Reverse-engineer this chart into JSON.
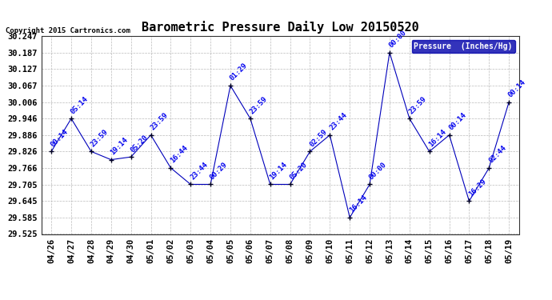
{
  "title": "Barometric Pressure Daily Low 20150520",
  "copyright": "Copyright 2015 Cartronics.com",
  "legend_label": "Pressure  (Inches/Hg)",
  "x_labels": [
    "04/26",
    "04/27",
    "04/28",
    "04/29",
    "04/30",
    "05/01",
    "05/02",
    "05/03",
    "05/04",
    "05/05",
    "05/06",
    "05/07",
    "05/08",
    "05/09",
    "05/10",
    "05/11",
    "05/12",
    "05/13",
    "05/14",
    "05/15",
    "05/16",
    "05/17",
    "05/18",
    "05/19"
  ],
  "y_values": [
    29.826,
    29.946,
    29.826,
    29.796,
    29.806,
    29.886,
    29.766,
    29.706,
    29.706,
    30.066,
    29.946,
    29.706,
    29.706,
    29.826,
    29.886,
    29.585,
    29.706,
    30.187,
    29.946,
    29.826,
    29.886,
    29.645,
    29.766,
    30.006
  ],
  "point_labels": [
    "00:14",
    "05:14",
    "23:59",
    "19:14",
    "05:20",
    "23:59",
    "16:44",
    "23:44",
    "00:29",
    "01:29",
    "23:59",
    "19:14",
    "05:20",
    "02:59",
    "23:44",
    "16:14",
    "00:00",
    "00:00",
    "23:59",
    "16:14",
    "00:14",
    "16:29",
    "02:44",
    "00:14"
  ],
  "ylim_min": 29.525,
  "ylim_max": 30.247,
  "yticks": [
    29.525,
    29.585,
    29.645,
    29.705,
    29.766,
    29.826,
    29.886,
    29.946,
    30.006,
    30.067,
    30.127,
    30.187,
    30.247
  ],
  "ytick_labels": [
    "29.525",
    "29.585",
    "29.645",
    "29.705",
    "29.766",
    "29.826",
    "29.886",
    "29.946",
    "30.006",
    "30.067",
    "30.127",
    "30.187",
    "30.247"
  ],
  "line_color": "#0000bb",
  "marker_color": "#000022",
  "label_color": "#0000ee",
  "bg_color": "#ffffff",
  "grid_color": "#bbbbbb",
  "title_fontsize": 11,
  "label_fontsize": 6.5,
  "tick_fontsize": 7.5,
  "legend_bg": "#0000aa",
  "legend_fg": "#ffffff"
}
